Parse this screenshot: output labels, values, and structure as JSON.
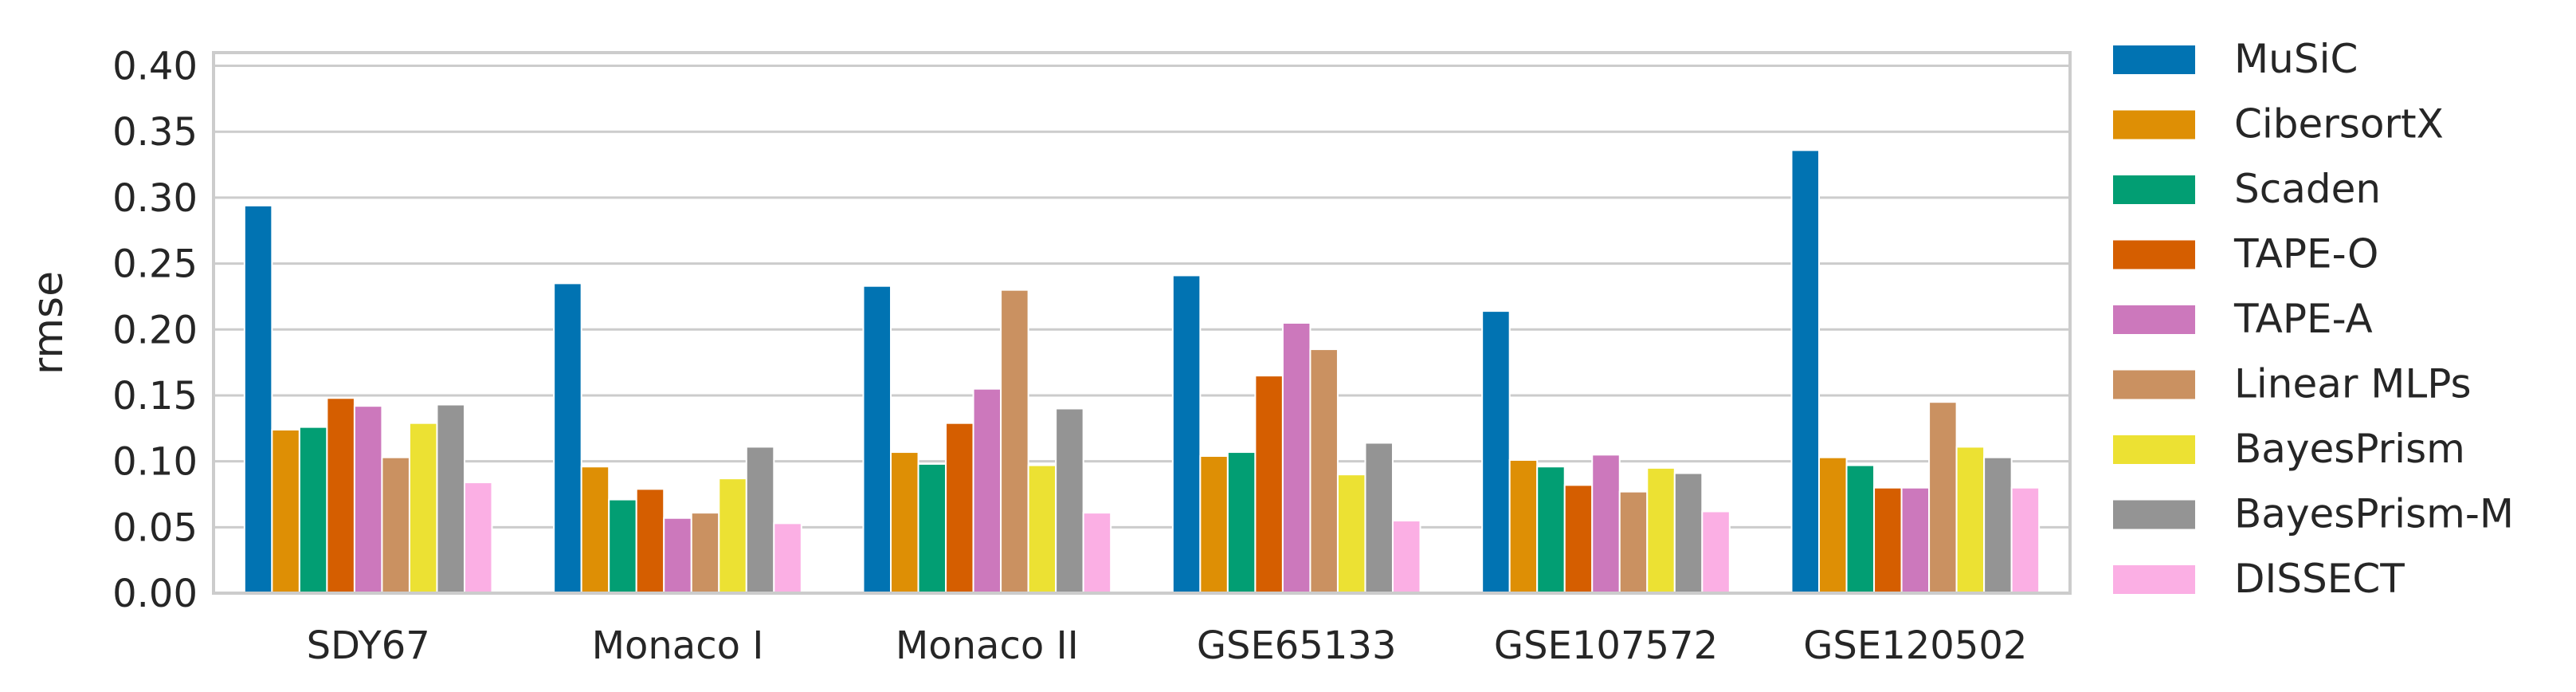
{
  "chart_data": {
    "type": "bar",
    "ylabel": "rmse",
    "xlabel": "",
    "ylim": [
      0,
      0.41
    ],
    "yticks": [
      "0.00",
      "0.05",
      "0.10",
      "0.15",
      "0.20",
      "0.25",
      "0.30",
      "0.35",
      "0.40"
    ],
    "grid": true,
    "legend_position": "right",
    "categories": [
      "SDY67",
      "Monaco I",
      "Monaco II",
      "GSE65133",
      "GSE107572",
      "GSE120502"
    ],
    "series": [
      {
        "name": "MuSiC",
        "color": "#0173b2",
        "values": [
          0.294,
          0.235,
          0.233,
          0.241,
          0.214,
          0.336
        ]
      },
      {
        "name": "CibersortX",
        "color": "#de8f05",
        "values": [
          0.124,
          0.096,
          0.107,
          0.104,
          0.101,
          0.103
        ]
      },
      {
        "name": "Scaden",
        "color": "#029e73",
        "values": [
          0.126,
          0.071,
          0.098,
          0.107,
          0.096,
          0.097
        ]
      },
      {
        "name": "TAPE-O",
        "color": "#d55e00",
        "values": [
          0.148,
          0.079,
          0.129,
          0.165,
          0.082,
          0.08
        ]
      },
      {
        "name": "TAPE-A",
        "color": "#cc78bc",
        "values": [
          0.142,
          0.057,
          0.155,
          0.205,
          0.105,
          0.08
        ]
      },
      {
        "name": "Linear MLPs",
        "color": "#ca9161",
        "values": [
          0.103,
          0.061,
          0.23,
          0.185,
          0.077,
          0.145
        ]
      },
      {
        "name": "BayesPrism",
        "color": "#ece133",
        "values": [
          0.129,
          0.087,
          0.097,
          0.09,
          0.095,
          0.111
        ]
      },
      {
        "name": "BayesPrism-M",
        "color": "#949494",
        "values": [
          0.143,
          0.111,
          0.14,
          0.114,
          0.091,
          0.103
        ]
      },
      {
        "name": "DISSECT",
        "color": "#fbafe4",
        "values": [
          0.084,
          0.053,
          0.061,
          0.055,
          0.062,
          0.08
        ]
      }
    ]
  }
}
